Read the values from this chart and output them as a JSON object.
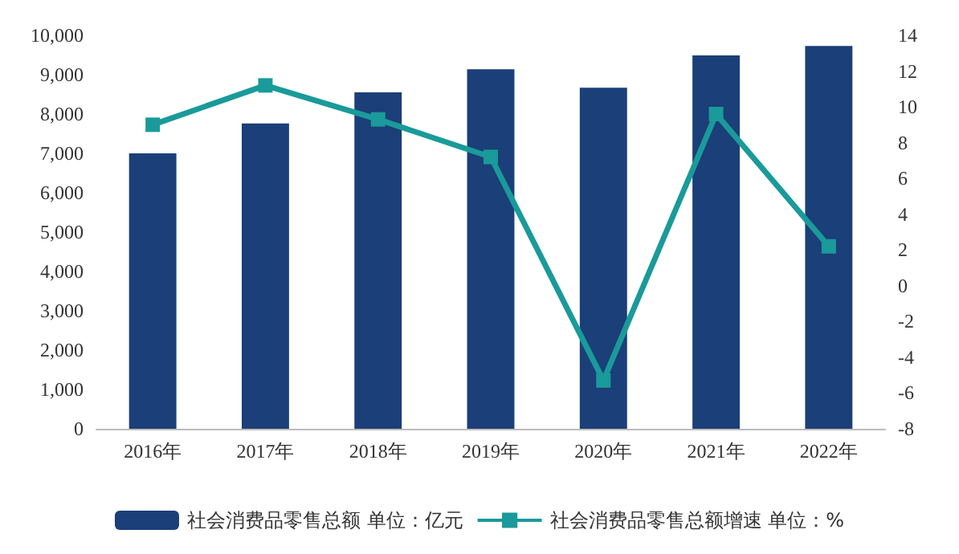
{
  "chart_data": {
    "type": "bar",
    "categories": [
      "2016年",
      "2017年",
      "2018年",
      "2019年",
      "2020年",
      "2021年",
      "2022年"
    ],
    "series": [
      {
        "name": "社会消费品零售总额 单位：亿元",
        "color": "#1b3f78",
        "values": [
          7000,
          7760,
          8550,
          9140,
          8670,
          9490,
          9730
        ]
      },
      {
        "name": "社会消费品零售总额增速 单位：%",
        "type": "line",
        "axis": "y2",
        "color": "#1a9a9a",
        "values": [
          9.0,
          11.2,
          9.3,
          7.2,
          -5.3,
          9.6,
          2.2
        ]
      }
    ],
    "ylim": [
      0,
      10000
    ],
    "yticks": [
      {
        "value": 0,
        "label": "0"
      },
      {
        "value": 1000,
        "label": "1,000"
      },
      {
        "value": 2000,
        "label": "2,000"
      },
      {
        "value": 3000,
        "label": "3,000"
      },
      {
        "value": 4000,
        "label": "4,000"
      },
      {
        "value": 5000,
        "label": "5,000"
      },
      {
        "value": 6000,
        "label": "6,000"
      },
      {
        "value": 7000,
        "label": "7,000"
      },
      {
        "value": 8000,
        "label": "8,000"
      },
      {
        "value": 9000,
        "label": "9,000"
      },
      {
        "value": 10000,
        "label": "10,000"
      }
    ],
    "y2lim": [
      -8,
      14
    ],
    "y2ticks": [
      -8,
      -6,
      -4,
      -2,
      0,
      2,
      4,
      6,
      8,
      10,
      12,
      14
    ],
    "grid": false,
    "legend": "bottom",
    "marker": "square",
    "line_style": "solid"
  }
}
